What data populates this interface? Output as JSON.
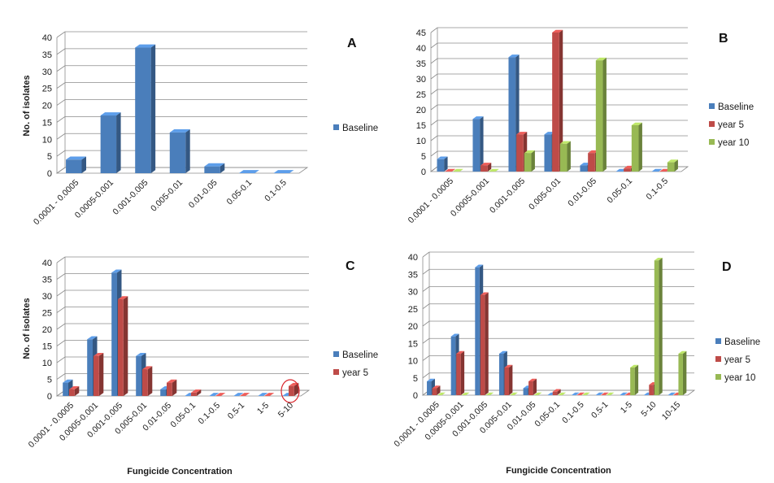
{
  "figure": {
    "x_axis_label": "Fungicide Concentration",
    "y_axis_label": "No. of isolates"
  },
  "chart_data": [
    {
      "panel": "A",
      "type": "bar",
      "categories": [
        "0.0001 - 0.0005",
        "0.0005-0.001",
        "0.001-0.005",
        "0.005-0.01",
        "0.01-0.05",
        "0.05-0.1",
        "0.1-0.5"
      ],
      "series": [
        {
          "name": "Baseline",
          "color": "#4a7ebb",
          "values": [
            4,
            17,
            37,
            12,
            2,
            0,
            0
          ]
        }
      ],
      "ylim": [
        0,
        40
      ],
      "yticks": [
        0,
        5,
        10,
        15,
        20,
        25,
        30,
        35,
        40
      ],
      "ylabel": "No. of isolates",
      "xlabel": "",
      "legend": "right",
      "grid": true
    },
    {
      "panel": "B",
      "type": "bar",
      "categories": [
        "0.0001 - 0.0005",
        "0.0005-0.001",
        "0.001-0.005",
        "0.005-0.01",
        "0.01-0.05",
        "0.05-0.1",
        "0.1-0.5"
      ],
      "series": [
        {
          "name": "Baseline",
          "color": "#4a7ebb",
          "values": [
            4,
            17,
            37,
            12,
            2,
            0,
            0
          ]
        },
        {
          "name": "year 5",
          "color": "#be4b48",
          "values": [
            0,
            2,
            12,
            45,
            6,
            1,
            0
          ]
        },
        {
          "name": "year 10",
          "color": "#98b954",
          "values": [
            0,
            0,
            6,
            9,
            36,
            15,
            3
          ]
        }
      ],
      "ylim": [
        0,
        45
      ],
      "yticks": [
        0,
        5,
        10,
        15,
        20,
        25,
        30,
        35,
        40,
        45
      ],
      "ylabel": "",
      "xlabel": "",
      "legend": "right",
      "grid": true
    },
    {
      "panel": "C",
      "type": "bar",
      "categories": [
        "0.0001 - 0.0005",
        "0.0005-0.001",
        "0.001-0.005",
        "0.005-0.01",
        "0.01-0.05",
        "0.05-0.1",
        "0.1-0.5",
        "0.5-1",
        "1-5",
        "5-10"
      ],
      "series": [
        {
          "name": "Baseline",
          "color": "#4a7ebb",
          "values": [
            4,
            17,
            37,
            12,
            2,
            0,
            0,
            0,
            0,
            0
          ]
        },
        {
          "name": "year 5",
          "color": "#be4b48",
          "values": [
            2,
            12,
            29,
            8,
            4,
            1,
            0,
            0,
            0,
            3
          ]
        }
      ],
      "ylim": [
        0,
        40
      ],
      "yticks": [
        0,
        5,
        10,
        15,
        20,
        25,
        30,
        35,
        40
      ],
      "ylabel": "No. of isolates",
      "xlabel": "Fungicide Concentration",
      "legend": "right",
      "grid": true,
      "highlight_category": "5-10"
    },
    {
      "panel": "D",
      "type": "bar",
      "categories": [
        "0.0001 - 0.0005",
        "0.0005-0.001",
        "0.001-0.005",
        "0.005-0.01",
        "0.01-0.05",
        "0.05-0.1",
        "0.1-0.5",
        "0.5-1",
        "1-5",
        "5-10",
        "10-15"
      ],
      "series": [
        {
          "name": "Baseline",
          "color": "#4a7ebb",
          "values": [
            4,
            17,
            37,
            12,
            2,
            0,
            0,
            0,
            0,
            0,
            0
          ]
        },
        {
          "name": "year 5",
          "color": "#be4b48",
          "values": [
            2,
            12,
            29,
            8,
            4,
            1,
            0,
            0,
            0,
            3,
            0
          ]
        },
        {
          "name": "year 10",
          "color": "#98b954",
          "values": [
            0,
            0,
            0,
            0,
            0,
            0,
            0,
            0,
            8,
            39,
            12
          ]
        }
      ],
      "ylim": [
        0,
        40
      ],
      "yticks": [
        0,
        5,
        10,
        15,
        20,
        25,
        30,
        35,
        40
      ],
      "ylabel": "",
      "xlabel": "Fungicide Concentration",
      "legend": "right",
      "grid": true
    }
  ]
}
